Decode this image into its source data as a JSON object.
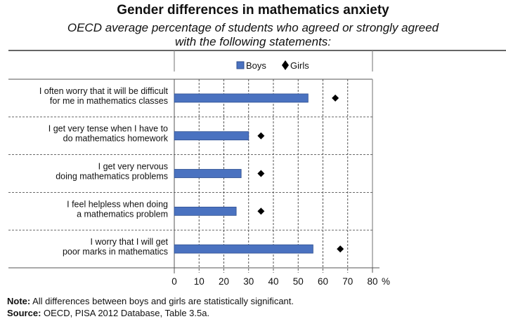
{
  "chart_data": {
    "type": "bar",
    "title": "Gender differences in mathematics anxiety",
    "subtitle_lines": [
      "OECD average percentage of students who agreed or strongly agreed",
      "with the following statements:"
    ],
    "orientation": "horizontal",
    "categories": [
      [
        "I often worry that it will be difficult",
        "for me in mathematics classes"
      ],
      [
        "I get very tense when I have to",
        "do mathematics homework"
      ],
      [
        "I get very nervous",
        "doing mathematics problems"
      ],
      [
        "I feel helpless when doing",
        "a mathematics problem"
      ],
      [
        "I worry that I will get",
        "poor marks in mathematics"
      ]
    ],
    "series": [
      {
        "name": "Boys",
        "type": "bar",
        "color": "#4a72c0",
        "values": [
          54,
          30,
          27,
          25,
          56
        ]
      },
      {
        "name": "Girls",
        "type": "marker-diamond",
        "color": "#000000",
        "values": [
          65,
          35,
          35,
          35,
          67
        ]
      }
    ],
    "xlabel": "",
    "xunit": "%",
    "xlim": [
      0,
      80
    ],
    "xticks": [
      0,
      10,
      20,
      30,
      40,
      50,
      60,
      70,
      80
    ],
    "grid": "vertical-dashed",
    "legend": "top-center"
  },
  "notes": {
    "note_label": "Note:",
    "note_text": " All differences between boys and girls are statistically significant.",
    "source_label": "Source:",
    "source_text": " OECD, PISA 2012 Database, Table 3.5a."
  }
}
